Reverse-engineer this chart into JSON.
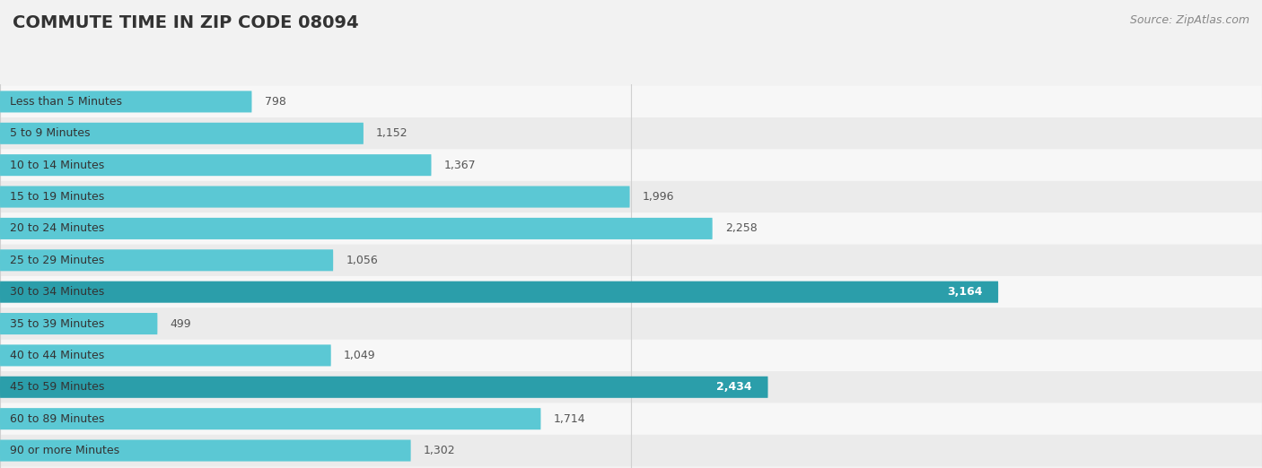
{
  "title": "COMMUTE TIME IN ZIP CODE 08094",
  "source": "Source: ZipAtlas.com",
  "categories": [
    "Less than 5 Minutes",
    "5 to 9 Minutes",
    "10 to 14 Minutes",
    "15 to 19 Minutes",
    "20 to 24 Minutes",
    "25 to 29 Minutes",
    "30 to 34 Minutes",
    "35 to 39 Minutes",
    "40 to 44 Minutes",
    "45 to 59 Minutes",
    "60 to 89 Minutes",
    "90 or more Minutes"
  ],
  "values": [
    798,
    1152,
    1367,
    1996,
    2258,
    1056,
    3164,
    499,
    1049,
    2434,
    1714,
    1302
  ],
  "bar_color_normal": "#5bc8d4",
  "bar_color_highlight": "#2b9eaa",
  "highlight_indices": [
    6,
    9
  ],
  "background_color": "#f2f2f2",
  "row_bg_colors": [
    "#f7f7f7",
    "#ebebeb"
  ],
  "xlim": [
    0,
    4000
  ],
  "xticks": [
    0,
    2000,
    4000
  ],
  "title_fontsize": 14,
  "label_fontsize": 9,
  "value_fontsize": 9,
  "source_fontsize": 9,
  "grid_color": "#d0d0d0"
}
